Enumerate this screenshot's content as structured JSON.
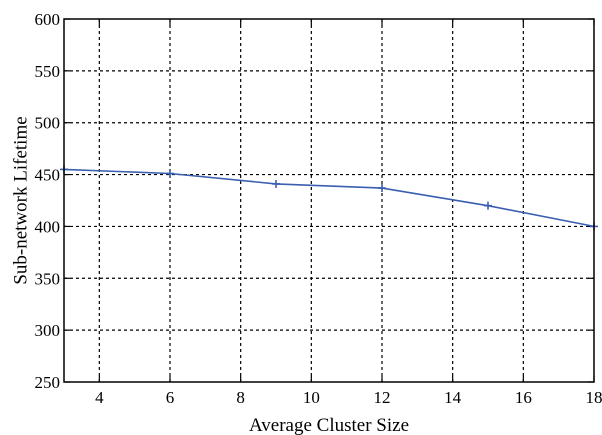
{
  "chart_data": {
    "type": "line",
    "title": "",
    "xlabel": "Average Cluster Size",
    "ylabel": "Sub-network Lifetime",
    "xlim": [
      3,
      18
    ],
    "ylim": [
      250,
      600
    ],
    "xticks": [
      4,
      6,
      8,
      10,
      12,
      14,
      16,
      18
    ],
    "yticks": [
      250,
      300,
      350,
      400,
      450,
      500,
      550,
      600
    ],
    "grid": true,
    "series": [
      {
        "color": "#3a5fb0",
        "marker": "plus",
        "x": [
          3,
          6,
          9,
          12,
          15,
          18
        ],
        "y": [
          455,
          451,
          441,
          437,
          420,
          400
        ]
      }
    ]
  }
}
